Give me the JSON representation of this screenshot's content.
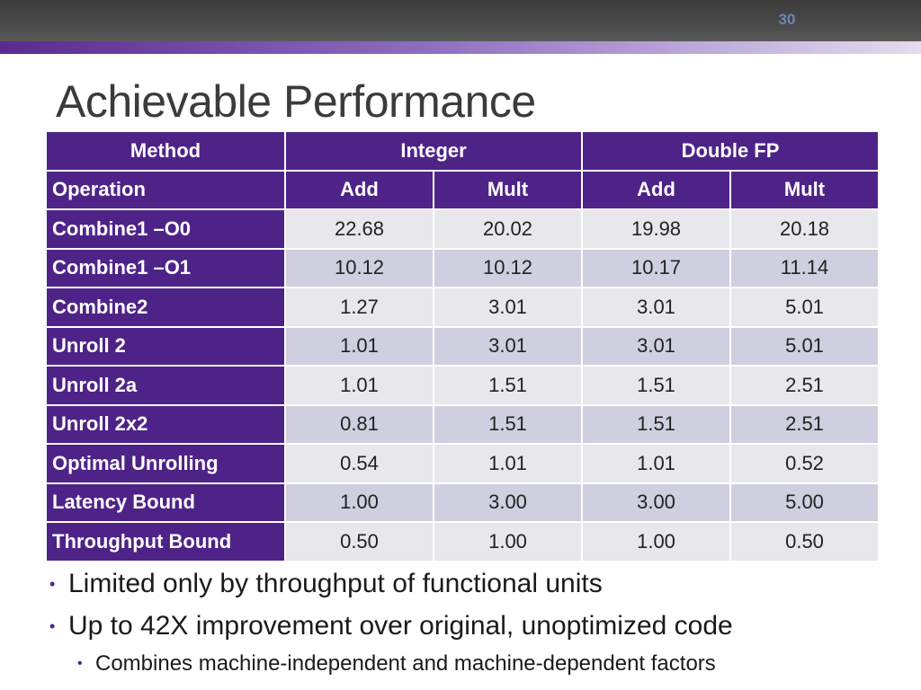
{
  "slide": {
    "number": "30",
    "title": "Achievable Performance"
  },
  "table": {
    "header_row1": {
      "method": "Method",
      "integer": "Integer",
      "double_fp": "Double FP"
    },
    "header_row2": [
      "Operation",
      "Add",
      "Mult",
      "Add",
      "Mult"
    ],
    "rows": [
      {
        "label": "Combine1 –O0",
        "values": [
          "22.68",
          "20.02",
          "19.98",
          "20.18"
        ]
      },
      {
        "label": "Combine1 –O1",
        "values": [
          "10.12",
          "10.12",
          "10.17",
          "11.14"
        ]
      },
      {
        "label": "Combine2",
        "values": [
          "1.27",
          "3.01",
          "3.01",
          "5.01"
        ]
      },
      {
        "label": "Unroll 2",
        "values": [
          "1.01",
          "3.01",
          "3.01",
          "5.01"
        ]
      },
      {
        "label": "Unroll 2a",
        "values": [
          "1.01",
          "1.51",
          "1.51",
          "2.51"
        ]
      },
      {
        "label": "Unroll 2x2",
        "values": [
          "0.81",
          "1.51",
          "1.51",
          "2.51"
        ]
      },
      {
        "label": "Optimal Unrolling",
        "values": [
          "0.54",
          "1.01",
          "1.01",
          "0.52"
        ]
      },
      {
        "label": "Latency Bound",
        "values": [
          "1.00",
          "3.00",
          "3.00",
          "5.00"
        ]
      },
      {
        "label": "Throughput Bound",
        "values": [
          "0.50",
          "1.00",
          "1.00",
          "0.50"
        ]
      }
    ]
  },
  "bullets": {
    "item1": "Limited only by throughput of functional units",
    "item2": "Up to 42X improvement over original, unoptimized code",
    "subitem1": "Combines machine-independent and machine-dependent factors",
    "bullet_glyph": "•"
  },
  "colors": {
    "header_purple": "#4e2388",
    "row_light": "#e7e7ec",
    "row_dark": "#cfcfe0",
    "topbar": "#404040",
    "slide_number": "#6f86b5"
  }
}
